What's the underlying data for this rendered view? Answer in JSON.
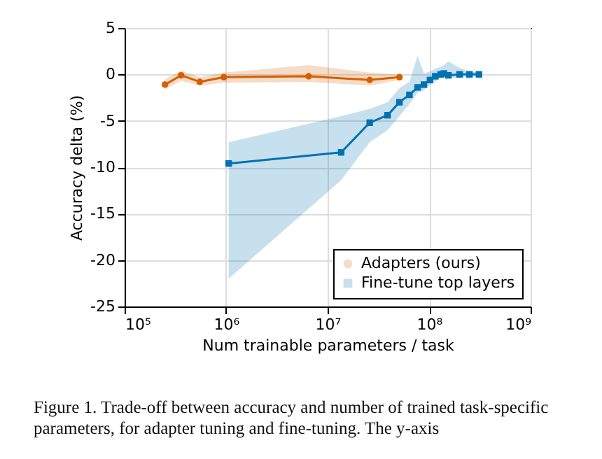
{
  "chart_data": {
    "type": "line",
    "xlabel": "Num trainable parameters / task",
    "ylabel": "Accuracy delta (%)",
    "log": "x",
    "xlim": [
      100000,
      1000000000
    ],
    "xticks": [
      {
        "value": 100000,
        "label": "10⁵"
      },
      {
        "value": 1000000,
        "label": "10⁶"
      },
      {
        "value": 10000000,
        "label": "10⁷"
      },
      {
        "value": 100000000,
        "label": "10⁸"
      },
      {
        "value": 1000000000,
        "label": "10⁹"
      }
    ],
    "ylim": [
      -25,
      5
    ],
    "yticks": [
      -25,
      -20,
      -15,
      -10,
      -5,
      0,
      5
    ],
    "grid": true,
    "legend": "bottom right",
    "line_style": "solid",
    "series": [
      {
        "name": "Adapters (ours)",
        "color": "#d55e00",
        "marker": "circle",
        "x": [
          250000,
          360000,
          550000,
          950000,
          6500000,
          26000000,
          51000000
        ],
        "values": [
          -1.1,
          -0.1,
          -0.8,
          -0.3,
          -0.2,
          -0.6,
          -0.3
        ],
        "lower": [
          -1.6,
          -0.7,
          -1.2,
          -0.9,
          -0.8,
          -1.2,
          -0.6
        ],
        "upper": [
          -0.5,
          0.4,
          -0.3,
          0.2,
          1.0,
          0.2,
          0.0
        ]
      },
      {
        "name": "Fine-tune top layers",
        "color": "#0072b2",
        "marker": "square",
        "x": [
          1060000,
          13600000,
          26000000,
          39000000,
          51000000,
          64000000,
          77000000,
          89000000,
          102000000,
          115000000,
          130000000,
          140000000,
          155000000,
          200000000,
          250000000,
          310000000
        ],
        "values": [
          -9.6,
          -8.4,
          -5.2,
          -4.4,
          -3.0,
          -2.2,
          -1.4,
          -1.1,
          -0.6,
          -0.2,
          0.0,
          0.1,
          -0.1,
          0.0,
          0,
          0
        ],
        "lower": [
          -22.0,
          -11.4,
          -7.3,
          -6.0,
          -4.5,
          -3.2,
          -2.0,
          -1.7,
          -1.1,
          -0.8,
          -0.4,
          -0.3,
          -0.4,
          -0.3,
          -0.2,
          -0.2
        ],
        "upper": [
          -7.3,
          -4.5,
          -3.7,
          -3.0,
          -1.5,
          -0.8,
          2.0,
          0.1,
          0.3,
          0.6,
          0.8,
          1.0,
          1.4,
          0.7,
          0.3,
          0.2
        ]
      }
    ],
    "annotations": [
      "Figure 1. Trade-off between accuracy and number of trained task-specific parameters, for adapter tuning and fine-tuning. The y-axis"
    ]
  }
}
